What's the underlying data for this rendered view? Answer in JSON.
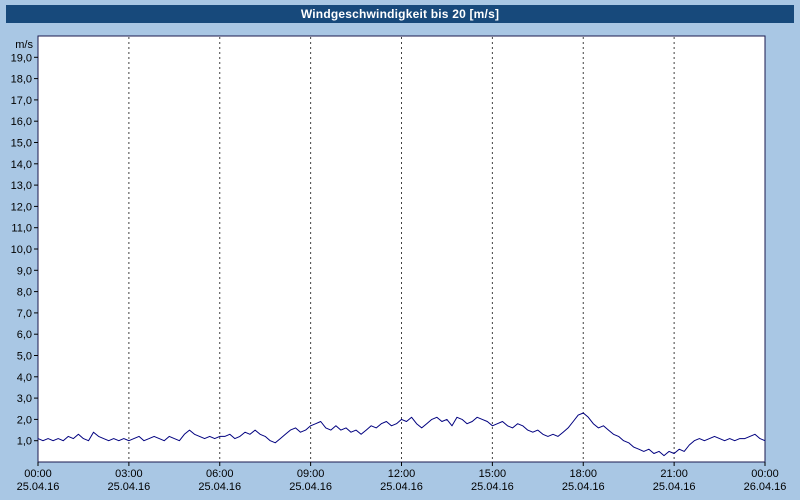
{
  "title": "Windgeschwindigkeit bis 20 [m/s]",
  "colors": {
    "background": "#a9c7e4",
    "titlebar_bg": "#17497b",
    "titlebar_text": "#ffffff",
    "plot_bg": "#ffffff",
    "plot_border": "#1a1a4e",
    "gridline": "#404040",
    "line": "#00007f",
    "label_text": "#000000"
  },
  "chart_data": {
    "type": "line",
    "title": "Windgeschwindigkeit bis 20 [m/s]",
    "ylabel_unit": "m/s",
    "ylim": [
      0,
      20
    ],
    "y_tick_step": 1,
    "y_tick_values": [
      19,
      18,
      17,
      16,
      15,
      14,
      13,
      12,
      11,
      10,
      9,
      8,
      7,
      6,
      5,
      4,
      3,
      2,
      1
    ],
    "y_tick_labels": [
      "19,0",
      "18,0",
      "17,0",
      "16,0",
      "15,0",
      "14,0",
      "13,0",
      "12,0",
      "11,0",
      "10,0",
      "9,0",
      "8,0",
      "7,0",
      "6,0",
      "5,0",
      "4,0",
      "3,0",
      "2,0",
      "1,0"
    ],
    "xlim_hours": [
      0,
      24
    ],
    "x_step_minutes": 10,
    "grid": "vertical-dashed",
    "legend": "none",
    "x_ticks": [
      {
        "hour": 0,
        "time": "00:00",
        "date": "25.04.16"
      },
      {
        "hour": 3,
        "time": "03:00",
        "date": "25.04.16"
      },
      {
        "hour": 6,
        "time": "06:00",
        "date": "25.04.16"
      },
      {
        "hour": 9,
        "time": "09:00",
        "date": "25.04.16"
      },
      {
        "hour": 12,
        "time": "12:00",
        "date": "25.04.16"
      },
      {
        "hour": 15,
        "time": "15:00",
        "date": "25.04.16"
      },
      {
        "hour": 18,
        "time": "18:00",
        "date": "25.04.16"
      },
      {
        "hour": 21,
        "time": "21:00",
        "date": "25.04.16"
      },
      {
        "hour": 24,
        "time": "00:00",
        "date": "26.04.16"
      }
    ],
    "series": [
      {
        "name": "Windgeschwindigkeit",
        "values": [
          1.1,
          1.0,
          1.1,
          1.0,
          1.1,
          1.0,
          1.2,
          1.1,
          1.3,
          1.1,
          1.0,
          1.4,
          1.2,
          1.1,
          1.0,
          1.1,
          1.0,
          1.1,
          1.0,
          1.1,
          1.2,
          1.0,
          1.1,
          1.2,
          1.1,
          1.0,
          1.2,
          1.1,
          1.0,
          1.3,
          1.5,
          1.3,
          1.2,
          1.1,
          1.2,
          1.1,
          1.2,
          1.2,
          1.3,
          1.1,
          1.2,
          1.4,
          1.3,
          1.5,
          1.3,
          1.2,
          1.0,
          0.9,
          1.1,
          1.3,
          1.5,
          1.6,
          1.4,
          1.5,
          1.7,
          1.8,
          1.9,
          1.6,
          1.5,
          1.7,
          1.5,
          1.6,
          1.4,
          1.5,
          1.3,
          1.5,
          1.7,
          1.6,
          1.8,
          1.9,
          1.7,
          1.8,
          2.0,
          1.9,
          2.1,
          1.8,
          1.6,
          1.8,
          2.0,
          2.1,
          1.9,
          2.0,
          1.7,
          2.1,
          2.0,
          1.8,
          1.9,
          2.1,
          2.0,
          1.9,
          1.7,
          1.8,
          1.9,
          1.7,
          1.6,
          1.8,
          1.7,
          1.5,
          1.4,
          1.5,
          1.3,
          1.2,
          1.3,
          1.2,
          1.4,
          1.6,
          1.9,
          2.2,
          2.3,
          2.1,
          1.8,
          1.6,
          1.7,
          1.5,
          1.3,
          1.2,
          1.0,
          0.9,
          0.7,
          0.6,
          0.5,
          0.6,
          0.4,
          0.5,
          0.3,
          0.5,
          0.4,
          0.6,
          0.5,
          0.8,
          1.0,
          1.1,
          1.0,
          1.1,
          1.2,
          1.1,
          1.0,
          1.1,
          1.0,
          1.1,
          1.1,
          1.2,
          1.3,
          1.1,
          1.0
        ]
      }
    ]
  }
}
